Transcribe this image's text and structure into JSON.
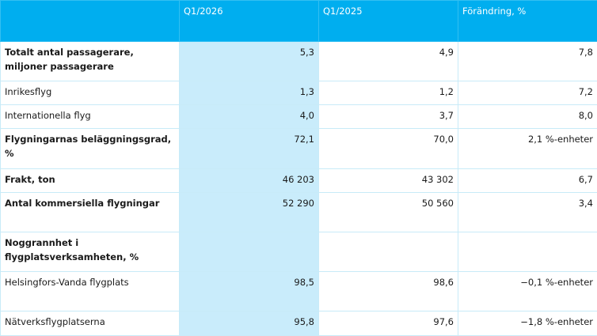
{
  "table": {
    "header": [
      "Q1/2026",
      "Q1/2025",
      "Förändring, %"
    ],
    "rows": [
      {
        "label": "Totalt antal passagerare,\nmiljoner passagerare",
        "cells": [
          "5,3",
          "4,9",
          "7,8"
        ]
      },
      {
        "label": "Inrikesflyg",
        "cells": [
          "1,3",
          "1,2",
          "7,2"
        ]
      },
      {
        "label": "Internationella flyg",
        "cells": [
          "4,0",
          "3,7",
          "8,0"
        ]
      },
      {
        "label": "Flygningarnas beläggningsgrad, %",
        "cells": [
          "72,1",
          "70,0",
          "2,1 %-enheter"
        ]
      },
      {
        "label": "Frakt, ton",
        "cells": [
          "46 203",
          "43 302",
          "6,7"
        ]
      },
      {
        "label": "Antal kommersiella flygningar",
        "cells": [
          "52 290",
          "50 560",
          "3,4"
        ]
      },
      {
        "label": "Noggrannhet i\nflygplatsverksamheten, %"
      },
      {
        "label": "Helsingfors-Vanda flygplats",
        "cells": [
          "98,5",
          "98,6",
          "−0,1 %-enheter"
        ]
      },
      {
        "label": "Nätverksflygplatserna",
        "cells": [
          "95,8",
          "97,6",
          "−1,8 %-enheter"
        ]
      }
    ]
  }
}
